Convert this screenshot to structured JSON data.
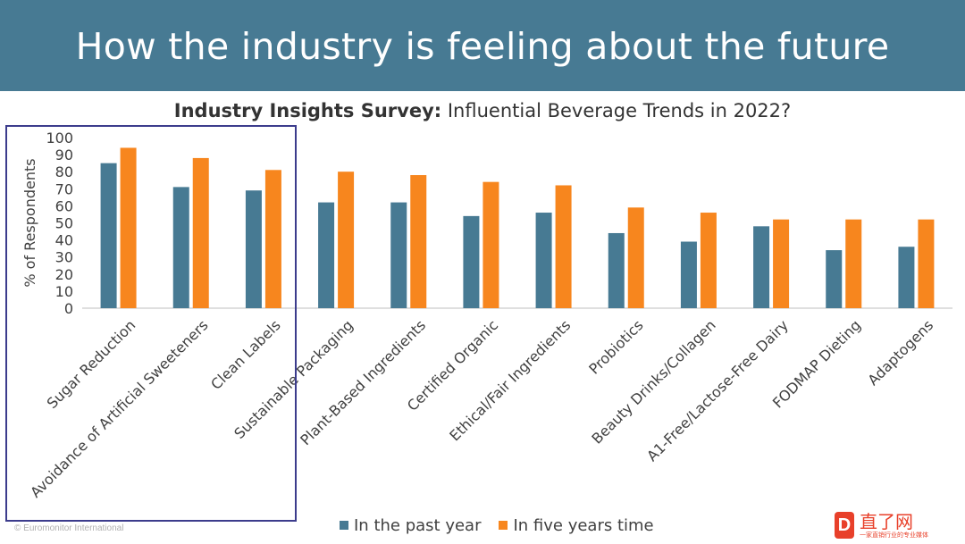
{
  "header": {
    "title": "How the industry is feeling about the future",
    "band_color": "#477a93"
  },
  "chart_data": {
    "type": "bar",
    "title_bold": "Industry Insights Survey:",
    "title_rest": " Influential Beverage Trends in 2022?",
    "ylabel": "% of Respondents",
    "xlabel": "",
    "ylim": [
      0,
      100
    ],
    "yticks": [
      0,
      10,
      20,
      30,
      40,
      50,
      60,
      70,
      80,
      90,
      100
    ],
    "grid": false,
    "legend_position": "bottom",
    "categories": [
      "Sugar Reduction",
      "Avoidance of Artificial Sweeteners",
      "Clean Labels",
      "Sustainable Packaging",
      "Plant-Based Ingredients",
      "Certified Organic",
      "Ethical/Fair Ingredients",
      "Probiotics",
      "Beauty Drinks/Collagen",
      "A1-Free/Lactose-Free Dairy",
      "FODMAP Dieting",
      "Adaptogens"
    ],
    "series": [
      {
        "name": "In the past year",
        "color": "#477a93",
        "values": [
          85,
          71,
          69,
          62,
          62,
          54,
          56,
          44,
          39,
          48,
          34,
          36
        ]
      },
      {
        "name": "In five years time",
        "color": "#f7861e",
        "values": [
          94,
          88,
          81,
          80,
          78,
          74,
          72,
          59,
          56,
          52,
          52,
          52
        ]
      }
    ],
    "highlight": {
      "categories": [
        "Sugar Reduction",
        "Avoidance of Artificial Sweeteners",
        "Clean Labels"
      ],
      "color": "#3c3c8c"
    }
  },
  "footer": {
    "copyright": "© Euromonitor International"
  },
  "watermark": {
    "logo_letter": "D",
    "name": "直了网",
    "tagline": "一家直销行业的专业媒体",
    "color": "#e8402a"
  },
  "colors": {
    "axis": "#bfbfbf",
    "tick_text": "#404040",
    "title_text": "#333333"
  }
}
